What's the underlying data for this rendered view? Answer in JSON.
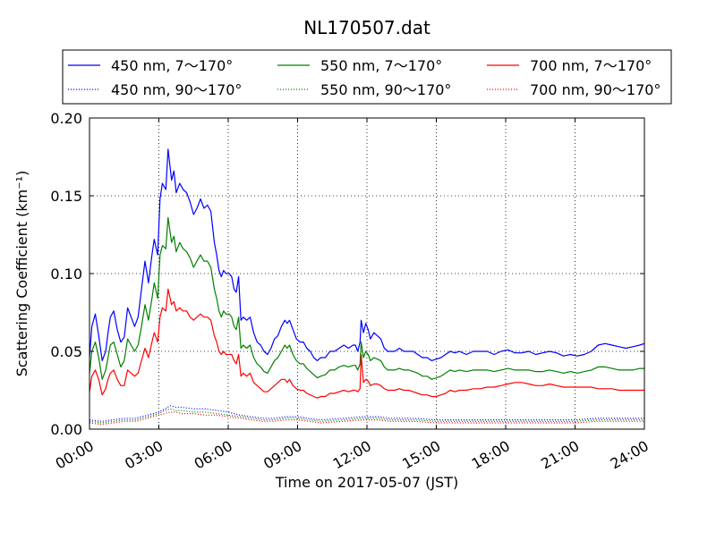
{
  "chart_data": {
    "type": "line",
    "title": "NL170507.dat",
    "xlabel": "Time on 2017-05-07 (JST)",
    "ylabel": "Scattering Coefficient (km⁻¹)",
    "xlim": [
      0,
      24
    ],
    "ylim": [
      0,
      0.2
    ],
    "xticks": [
      0,
      3,
      6,
      9,
      12,
      15,
      18,
      21,
      24
    ],
    "xtick_labels": [
      "00:00",
      "03:00",
      "06:00",
      "09:00",
      "12:00",
      "15:00",
      "18:00",
      "21:00",
      "24:00"
    ],
    "yticks": [
      0,
      0.05,
      0.1,
      0.15,
      0.2
    ],
    "ytick_labels": [
      "0.00",
      "0.05",
      "0.10",
      "0.15",
      "0.20"
    ],
    "grid": true,
    "legend_position": "top",
    "series": [
      {
        "name": "450 nm, 7～170°",
        "color": "#0000ff",
        "style": "solid",
        "x": [
          0,
          0.1,
          0.25,
          0.4,
          0.55,
          0.7,
          0.8,
          0.9,
          1.05,
          1.2,
          1.35,
          1.5,
          1.65,
          1.8,
          1.95,
          2.1,
          2.25,
          2.4,
          2.55,
          2.7,
          2.8,
          2.95,
          3.05,
          3.15,
          3.3,
          3.4,
          3.55,
          3.65,
          3.75,
          3.9,
          4.05,
          4.2,
          4.35,
          4.5,
          4.65,
          4.8,
          4.95,
          5.1,
          5.25,
          5.4,
          5.5,
          5.6,
          5.7,
          5.8,
          5.9,
          6.05,
          6.15,
          6.25,
          6.35,
          6.45,
          6.55,
          6.65,
          6.8,
          6.95,
          7.1,
          7.25,
          7.4,
          7.55,
          7.7,
          7.85,
          8.0,
          8.15,
          8.3,
          8.45,
          8.55,
          8.65,
          8.8,
          8.95,
          9.1,
          9.25,
          9.4,
          9.55,
          9.7,
          9.85,
          10.0,
          10.2,
          10.4,
          10.6,
          10.8,
          11.0,
          11.2,
          11.4,
          11.5,
          11.6,
          11.7,
          11.75,
          11.85,
          11.95,
          12.05,
          12.15,
          12.3,
          12.45,
          12.6,
          12.75,
          12.9,
          13.05,
          13.2,
          13.4,
          13.6,
          13.8,
          14.0,
          14.2,
          14.4,
          14.6,
          14.8,
          15.0,
          15.2,
          15.4,
          15.6,
          15.8,
          16.0,
          16.3,
          16.6,
          16.9,
          17.2,
          17.5,
          17.8,
          18.1,
          18.4,
          18.7,
          19.0,
          19.3,
          19.6,
          19.9,
          20.2,
          20.5,
          20.8,
          21.1,
          21.4,
          21.7,
          22.0,
          22.3,
          22.6,
          22.9,
          23.2,
          23.5,
          23.8,
          24.0
        ],
        "y": [
          0.046,
          0.066,
          0.074,
          0.06,
          0.044,
          0.05,
          0.062,
          0.072,
          0.076,
          0.064,
          0.056,
          0.059,
          0.078,
          0.072,
          0.066,
          0.072,
          0.09,
          0.108,
          0.094,
          0.112,
          0.122,
          0.112,
          0.148,
          0.158,
          0.154,
          0.18,
          0.16,
          0.166,
          0.152,
          0.158,
          0.154,
          0.152,
          0.146,
          0.138,
          0.142,
          0.148,
          0.142,
          0.144,
          0.14,
          0.12,
          0.112,
          0.102,
          0.098,
          0.102,
          0.1,
          0.1,
          0.098,
          0.09,
          0.088,
          0.098,
          0.07,
          0.072,
          0.07,
          0.072,
          0.062,
          0.056,
          0.054,
          0.05,
          0.048,
          0.052,
          0.058,
          0.06,
          0.066,
          0.07,
          0.068,
          0.07,
          0.064,
          0.058,
          0.056,
          0.056,
          0.052,
          0.05,
          0.046,
          0.044,
          0.046,
          0.046,
          0.05,
          0.05,
          0.052,
          0.054,
          0.052,
          0.054,
          0.054,
          0.05,
          0.056,
          0.07,
          0.062,
          0.068,
          0.064,
          0.058,
          0.062,
          0.06,
          0.058,
          0.052,
          0.05,
          0.05,
          0.05,
          0.052,
          0.05,
          0.05,
          0.05,
          0.048,
          0.046,
          0.046,
          0.044,
          0.045,
          0.046,
          0.048,
          0.05,
          0.049,
          0.05,
          0.048,
          0.05,
          0.05,
          0.05,
          0.048,
          0.05,
          0.051,
          0.049,
          0.049,
          0.05,
          0.048,
          0.049,
          0.05,
          0.049,
          0.047,
          0.048,
          0.047,
          0.048,
          0.05,
          0.054,
          0.055,
          0.054,
          0.053,
          0.052,
          0.053,
          0.054,
          0.055
        ]
      },
      {
        "name": "550 nm, 7～170°",
        "color": "#008000",
        "style": "solid",
        "x": [
          0,
          0.1,
          0.25,
          0.4,
          0.55,
          0.7,
          0.8,
          0.9,
          1.05,
          1.2,
          1.35,
          1.5,
          1.65,
          1.8,
          1.95,
          2.1,
          2.25,
          2.4,
          2.55,
          2.7,
          2.8,
          2.95,
          3.05,
          3.15,
          3.3,
          3.4,
          3.55,
          3.65,
          3.75,
          3.9,
          4.05,
          4.2,
          4.35,
          4.5,
          4.65,
          4.8,
          4.95,
          5.1,
          5.25,
          5.4,
          5.5,
          5.6,
          5.7,
          5.8,
          5.9,
          6.05,
          6.15,
          6.25,
          6.35,
          6.45,
          6.55,
          6.65,
          6.8,
          6.95,
          7.1,
          7.25,
          7.4,
          7.55,
          7.7,
          7.85,
          8.0,
          8.15,
          8.3,
          8.45,
          8.55,
          8.65,
          8.8,
          8.95,
          9.1,
          9.25,
          9.4,
          9.55,
          9.7,
          9.85,
          10.0,
          10.2,
          10.4,
          10.6,
          10.8,
          11.0,
          11.2,
          11.4,
          11.5,
          11.6,
          11.7,
          11.75,
          11.85,
          11.95,
          12.05,
          12.15,
          12.3,
          12.45,
          12.6,
          12.75,
          12.9,
          13.05,
          13.2,
          13.4,
          13.6,
          13.8,
          14.0,
          14.2,
          14.4,
          14.6,
          14.8,
          15.0,
          15.2,
          15.4,
          15.6,
          15.8,
          16.0,
          16.3,
          16.6,
          16.9,
          17.2,
          17.5,
          17.8,
          18.1,
          18.4,
          18.7,
          19.0,
          19.3,
          19.6,
          19.9,
          20.2,
          20.5,
          20.8,
          21.1,
          21.4,
          21.7,
          22.0,
          22.3,
          22.6,
          22.9,
          23.2,
          23.5,
          23.8,
          24.0
        ],
        "y": [
          0.036,
          0.05,
          0.056,
          0.046,
          0.032,
          0.038,
          0.046,
          0.054,
          0.056,
          0.048,
          0.04,
          0.044,
          0.058,
          0.054,
          0.05,
          0.054,
          0.066,
          0.08,
          0.07,
          0.084,
          0.094,
          0.084,
          0.112,
          0.118,
          0.116,
          0.136,
          0.12,
          0.124,
          0.114,
          0.12,
          0.116,
          0.114,
          0.11,
          0.104,
          0.108,
          0.112,
          0.108,
          0.108,
          0.104,
          0.09,
          0.084,
          0.076,
          0.072,
          0.076,
          0.074,
          0.074,
          0.072,
          0.066,
          0.064,
          0.072,
          0.052,
          0.054,
          0.052,
          0.054,
          0.046,
          0.042,
          0.04,
          0.037,
          0.036,
          0.04,
          0.044,
          0.046,
          0.05,
          0.054,
          0.052,
          0.054,
          0.048,
          0.044,
          0.042,
          0.042,
          0.039,
          0.037,
          0.035,
          0.033,
          0.034,
          0.035,
          0.038,
          0.038,
          0.04,
          0.041,
          0.04,
          0.041,
          0.041,
          0.038,
          0.042,
          0.056,
          0.046,
          0.05,
          0.048,
          0.044,
          0.046,
          0.045,
          0.044,
          0.04,
          0.038,
          0.038,
          0.038,
          0.039,
          0.038,
          0.038,
          0.037,
          0.036,
          0.034,
          0.034,
          0.032,
          0.033,
          0.034,
          0.036,
          0.038,
          0.037,
          0.038,
          0.037,
          0.038,
          0.038,
          0.038,
          0.037,
          0.038,
          0.039,
          0.038,
          0.038,
          0.038,
          0.037,
          0.037,
          0.038,
          0.037,
          0.036,
          0.037,
          0.036,
          0.037,
          0.038,
          0.04,
          0.04,
          0.039,
          0.038,
          0.038,
          0.038,
          0.039,
          0.039
        ]
      },
      {
        "name": "700 nm, 7～170°",
        "color": "#ff0000",
        "style": "solid",
        "x": [
          0,
          0.1,
          0.25,
          0.4,
          0.55,
          0.7,
          0.8,
          0.9,
          1.05,
          1.2,
          1.35,
          1.5,
          1.65,
          1.8,
          1.95,
          2.1,
          2.25,
          2.4,
          2.55,
          2.7,
          2.8,
          2.95,
          3.05,
          3.15,
          3.3,
          3.4,
          3.55,
          3.65,
          3.75,
          3.9,
          4.05,
          4.2,
          4.35,
          4.5,
          4.65,
          4.8,
          4.95,
          5.1,
          5.25,
          5.4,
          5.5,
          5.6,
          5.7,
          5.8,
          5.9,
          6.05,
          6.15,
          6.25,
          6.35,
          6.45,
          6.55,
          6.65,
          6.8,
          6.95,
          7.1,
          7.25,
          7.4,
          7.55,
          7.7,
          7.85,
          8.0,
          8.15,
          8.3,
          8.45,
          8.55,
          8.65,
          8.8,
          8.95,
          9.1,
          9.25,
          9.4,
          9.55,
          9.7,
          9.85,
          10.0,
          10.2,
          10.4,
          10.6,
          10.8,
          11.0,
          11.2,
          11.4,
          11.5,
          11.6,
          11.7,
          11.75,
          11.85,
          11.95,
          12.05,
          12.15,
          12.3,
          12.45,
          12.6,
          12.75,
          12.9,
          13.05,
          13.2,
          13.4,
          13.6,
          13.8,
          14.0,
          14.2,
          14.4,
          14.6,
          14.8,
          15.0,
          15.2,
          15.4,
          15.6,
          15.8,
          16.0,
          16.3,
          16.6,
          16.9,
          17.2,
          17.5,
          17.8,
          18.1,
          18.4,
          18.7,
          19.0,
          19.3,
          19.6,
          19.9,
          20.2,
          20.5,
          20.8,
          21.1,
          21.4,
          21.7,
          22.0,
          22.3,
          22.6,
          22.9,
          23.2,
          23.5,
          23.8,
          24.0
        ],
        "y": [
          0.024,
          0.034,
          0.038,
          0.032,
          0.022,
          0.026,
          0.032,
          0.036,
          0.038,
          0.032,
          0.028,
          0.028,
          0.038,
          0.036,
          0.034,
          0.036,
          0.044,
          0.052,
          0.046,
          0.056,
          0.062,
          0.056,
          0.072,
          0.078,
          0.076,
          0.09,
          0.08,
          0.082,
          0.076,
          0.078,
          0.076,
          0.076,
          0.072,
          0.07,
          0.072,
          0.074,
          0.072,
          0.072,
          0.07,
          0.06,
          0.056,
          0.05,
          0.048,
          0.05,
          0.048,
          0.048,
          0.048,
          0.044,
          0.042,
          0.048,
          0.034,
          0.036,
          0.034,
          0.036,
          0.03,
          0.028,
          0.026,
          0.024,
          0.024,
          0.026,
          0.028,
          0.03,
          0.032,
          0.032,
          0.03,
          0.032,
          0.028,
          0.026,
          0.025,
          0.025,
          0.023,
          0.022,
          0.021,
          0.02,
          0.021,
          0.021,
          0.023,
          0.023,
          0.024,
          0.025,
          0.024,
          0.025,
          0.025,
          0.024,
          0.026,
          0.048,
          0.03,
          0.032,
          0.031,
          0.028,
          0.029,
          0.029,
          0.028,
          0.026,
          0.025,
          0.025,
          0.025,
          0.026,
          0.025,
          0.025,
          0.024,
          0.023,
          0.022,
          0.022,
          0.021,
          0.021,
          0.022,
          0.023,
          0.025,
          0.024,
          0.025,
          0.025,
          0.026,
          0.026,
          0.027,
          0.027,
          0.028,
          0.029,
          0.03,
          0.03,
          0.029,
          0.028,
          0.028,
          0.029,
          0.028,
          0.027,
          0.027,
          0.027,
          0.027,
          0.027,
          0.026,
          0.026,
          0.026,
          0.025,
          0.025,
          0.025,
          0.025,
          0.025
        ]
      },
      {
        "name": "450 nm, 90～170°",
        "color": "#0000ff",
        "style": "dotted",
        "x": [
          0,
          0.5,
          1.0,
          1.5,
          2.0,
          2.5,
          3.0,
          3.25,
          3.5,
          3.75,
          4.0,
          4.5,
          5.0,
          5.5,
          6.0,
          6.5,
          7.0,
          7.5,
          8.0,
          8.5,
          9.0,
          9.5,
          10.0,
          11.0,
          11.8,
          12.5,
          13.0,
          14.0,
          15.0,
          16.0,
          17.0,
          18.0,
          19.0,
          20.0,
          21.0,
          22.0,
          23.0,
          24.0
        ],
        "y": [
          0.006,
          0.005,
          0.006,
          0.007,
          0.007,
          0.009,
          0.011,
          0.013,
          0.015,
          0.014,
          0.014,
          0.013,
          0.013,
          0.012,
          0.011,
          0.009,
          0.008,
          0.007,
          0.007,
          0.008,
          0.008,
          0.007,
          0.006,
          0.007,
          0.008,
          0.008,
          0.007,
          0.007,
          0.006,
          0.006,
          0.006,
          0.006,
          0.006,
          0.006,
          0.006,
          0.007,
          0.007,
          0.007
        ]
      },
      {
        "name": "550 nm, 90～170°",
        "color": "#008000",
        "style": "dotted",
        "x": [
          0,
          0.5,
          1.0,
          1.5,
          2.0,
          2.5,
          3.0,
          3.25,
          3.5,
          3.75,
          4.0,
          4.5,
          5.0,
          5.5,
          6.0,
          6.5,
          7.0,
          7.5,
          8.0,
          8.5,
          9.0,
          9.5,
          10.0,
          11.0,
          11.8,
          12.5,
          13.0,
          14.0,
          15.0,
          16.0,
          17.0,
          18.0,
          19.0,
          20.0,
          21.0,
          22.0,
          23.0,
          24.0
        ],
        "y": [
          0.005,
          0.004,
          0.005,
          0.006,
          0.006,
          0.008,
          0.01,
          0.012,
          0.013,
          0.012,
          0.012,
          0.011,
          0.011,
          0.01,
          0.009,
          0.008,
          0.007,
          0.006,
          0.006,
          0.007,
          0.007,
          0.006,
          0.005,
          0.006,
          0.007,
          0.007,
          0.006,
          0.006,
          0.005,
          0.005,
          0.005,
          0.005,
          0.005,
          0.005,
          0.005,
          0.006,
          0.006,
          0.006
        ]
      },
      {
        "name": "700 nm, 90～170°",
        "color": "#ff0000",
        "style": "dotted",
        "x": [
          0,
          0.5,
          1.0,
          1.5,
          2.0,
          2.5,
          3.0,
          3.25,
          3.5,
          3.75,
          4.0,
          4.5,
          5.0,
          5.5,
          6.0,
          6.5,
          7.0,
          7.5,
          8.0,
          8.5,
          9.0,
          9.5,
          10.0,
          11.0,
          11.8,
          12.5,
          13.0,
          14.0,
          15.0,
          16.0,
          17.0,
          18.0,
          19.0,
          20.0,
          21.0,
          22.0,
          23.0,
          24.0
        ],
        "y": [
          0.004,
          0.003,
          0.004,
          0.005,
          0.005,
          0.007,
          0.009,
          0.01,
          0.011,
          0.011,
          0.01,
          0.01,
          0.009,
          0.009,
          0.008,
          0.007,
          0.006,
          0.005,
          0.005,
          0.006,
          0.006,
          0.005,
          0.004,
          0.005,
          0.006,
          0.006,
          0.005,
          0.005,
          0.004,
          0.004,
          0.004,
          0.004,
          0.004,
          0.004,
          0.004,
          0.005,
          0.005,
          0.005
        ]
      }
    ]
  }
}
